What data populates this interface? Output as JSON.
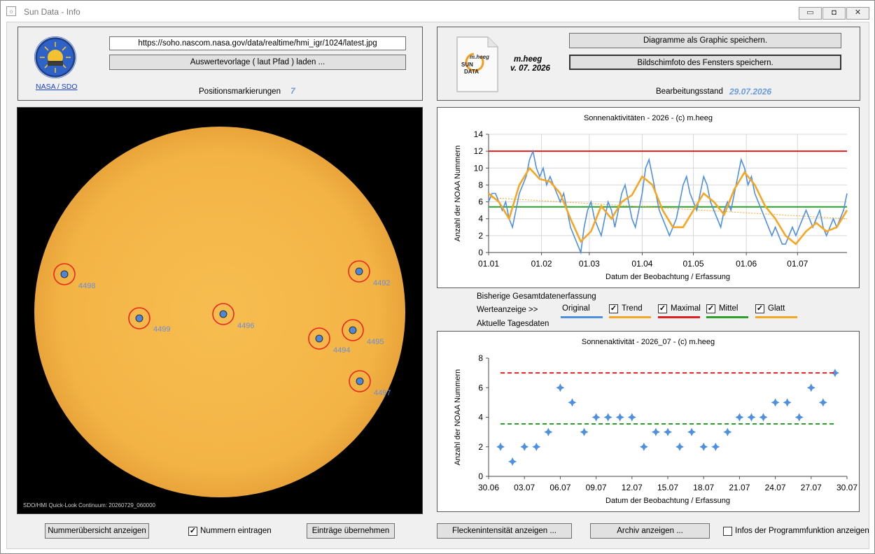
{
  "window": {
    "title": "Sun Data - Info",
    "app_icon": "sun-data-app-icon",
    "controls": {
      "minimize": "▭",
      "maximize": "◘",
      "close": "✕"
    }
  },
  "top_left": {
    "logo_icon": "soho-logo-icon",
    "logo_link": "NASA / SDO",
    "url": "https://soho.nascom.nasa.gov/data/realtime/hmi_igr/1024/latest.jpg",
    "load_button": "Auswertevorlage ( laut Pfad ) laden ...",
    "markers_label": "Positionsmarkierungen",
    "markers_value": "7"
  },
  "top_right": {
    "doc_icon": "sun-data-document-icon",
    "doc_icon_text": {
      "brand": "m.heeg",
      "line1": "SUN",
      "line2": "DATA"
    },
    "author": "m.heeg",
    "version": "v. 07. 2026",
    "save_graphic_button": "Diagramme als Graphic speichern.",
    "save_screenshot_button": "Bildschimfoto des Fensters speichern.",
    "edit_status_label": "Bearbeitungsstand",
    "edit_status_date": "29.07.2026"
  },
  "sun_image": {
    "caption": "SDO/HMI Quick-Look Continuum: 20260729_060000",
    "spots": [
      {
        "label": "4498"
      },
      {
        "label": "4499"
      },
      {
        "label": "4496"
      },
      {
        "label": "4492"
      },
      {
        "label": "4494"
      },
      {
        "label": "4495"
      },
      {
        "label": "4497"
      }
    ],
    "colors": {
      "disk": "#f5b84a",
      "marker_ring": "#e8281e",
      "marker_dot": "#4f86d8",
      "label": "#6b8fd6"
    }
  },
  "legend": {
    "total_label": "Bisherige Gesamtdatenerfassung",
    "values_label": "Werteanzeige   >>",
    "daily_label": "Aktuelle Tagesdaten",
    "items": [
      {
        "label": "Original",
        "color": "#4f8fe0",
        "checked": null
      },
      {
        "label": "Trend",
        "color": "#f5a623",
        "checked": true
      },
      {
        "label": "Maximal",
        "color": "#e02020",
        "checked": true
      },
      {
        "label": "Mittel",
        "color": "#2aa02a",
        "checked": true
      },
      {
        "label": "Glatt",
        "color": "#f5a623",
        "checked": true
      }
    ]
  },
  "chart_data": [
    {
      "type": "line",
      "title": "Sonnenaktivitäten - 2026 - (c) m.heeg",
      "xlabel": "Datum der Beobachtung / Erfassung",
      "ylabel": "Anzahl der NOAA Nummern",
      "ylim": [
        0,
        14
      ],
      "yticks": [
        "0",
        "2",
        "4",
        "6",
        "8",
        "10",
        "12",
        "14"
      ],
      "xticks": [
        "01.01",
        "01.02",
        "01.03",
        "01.04",
        "01.05",
        "01.06",
        "01.07"
      ],
      "grid": true,
      "xlim_days": [
        1,
        211
      ],
      "series": [
        {
          "name": "Original",
          "color": "#4f8fe0",
          "x_day": [
            1,
            3,
            5,
            7,
            9,
            11,
            13,
            15,
            17,
            19,
            21,
            23,
            25,
            27,
            29,
            31,
            33,
            35,
            37,
            39,
            41,
            43,
            45,
            47,
            49,
            51,
            53,
            55,
            57,
            59,
            61,
            63,
            65,
            67,
            69,
            71,
            73,
            75,
            77,
            79,
            81,
            83,
            85,
            87,
            89,
            91,
            93,
            95,
            97,
            99,
            101,
            103,
            105,
            107,
            109,
            111,
            113,
            115,
            117,
            119,
            121,
            123,
            125,
            127,
            129,
            131,
            133,
            135,
            137,
            139,
            141,
            143,
            145,
            147,
            149,
            151,
            153,
            155,
            157,
            159,
            161,
            163,
            165,
            167,
            169,
            171,
            173,
            175,
            177,
            179,
            181,
            183,
            185,
            187,
            189,
            191,
            193,
            195,
            197,
            199,
            201,
            203,
            205,
            207,
            209,
            211
          ],
          "values": [
            6,
            7,
            7,
            6,
            5,
            6,
            4,
            3,
            5,
            7,
            8,
            9,
            11,
            12,
            10,
            9,
            10,
            8,
            9,
            8,
            7,
            6,
            7,
            5,
            3,
            2,
            1,
            0,
            3,
            5,
            6,
            4,
            3,
            2,
            4,
            6,
            5,
            3,
            5,
            7,
            8,
            6,
            4,
            3,
            5,
            7,
            10,
            11,
            9,
            7,
            5,
            4,
            3,
            2,
            3,
            4,
            6,
            8,
            9,
            7,
            6,
            5,
            7,
            9,
            8,
            6,
            5,
            4,
            3,
            5,
            6,
            5,
            7,
            9,
            11,
            10,
            8,
            9,
            7,
            6,
            5,
            4,
            3,
            2,
            3,
            2,
            1,
            1,
            2,
            3,
            2,
            3,
            4,
            5,
            4,
            3,
            4,
            5,
            3,
            2,
            3,
            4,
            3,
            4,
            5,
            7
          ]
        },
        {
          "name": "Glatt",
          "color": "#f5a623",
          "x_day": [
            1,
            7,
            13,
            19,
            25,
            31,
            37,
            43,
            49,
            55,
            61,
            67,
            73,
            79,
            85,
            91,
            97,
            103,
            109,
            115,
            121,
            127,
            133,
            139,
            145,
            151,
            157,
            163,
            169,
            175,
            181,
            187,
            193,
            199,
            205,
            211
          ],
          "values": [
            7,
            6,
            4,
            8,
            10,
            8.7,
            8.4,
            7,
            4,
            1.3,
            2.5,
            5.5,
            4,
            6,
            6.8,
            9,
            8,
            5,
            3,
            3,
            5,
            7,
            6,
            4.5,
            7.5,
            9.5,
            8,
            5.5,
            4,
            2,
            1,
            2.5,
            3.5,
            2.5,
            3,
            5
          ]
        },
        {
          "name": "Trend",
          "color": "#f5a623",
          "x_day": [
            1,
            211
          ],
          "values": [
            6.5,
            4.0
          ]
        },
        {
          "name": "Maximal",
          "color": "#e02020",
          "x_day": [
            1,
            211
          ],
          "values": [
            12,
            12
          ]
        },
        {
          "name": "Mittel",
          "color": "#2aa02a",
          "x_day": [
            1,
            211
          ],
          "values": [
            5.4,
            5.4
          ]
        }
      ]
    },
    {
      "type": "scatter",
      "title": "Sonnenaktivität - 2026_07 - (c) m.heeg",
      "xlabel": "Datum der Beobachtung / Erfassung",
      "ylabel": "Anzahl der NOAA Nummern",
      "ylim": [
        0,
        8
      ],
      "yticks": [
        "0",
        "2",
        "4",
        "6",
        "8"
      ],
      "xticks": [
        "30.06",
        "03.07",
        "06.07",
        "09.07",
        "12.07",
        "15.07",
        "18.07",
        "21.07",
        "24.07",
        "27.07",
        "30.07"
      ],
      "grid": false,
      "xlim_days": [
        0,
        30
      ],
      "series": [
        {
          "name": "Original",
          "color": "#4f8fe0",
          "x": [
            1,
            2,
            3,
            4,
            5,
            6,
            7,
            8,
            9,
            10,
            11,
            12,
            13,
            14,
            15,
            16,
            17,
            18,
            19,
            20,
            21,
            22,
            23,
            24,
            25,
            26,
            27,
            28,
            29
          ],
          "values": [
            2,
            1,
            2,
            2,
            3,
            6,
            5,
            3,
            4,
            4,
            4,
            4,
            2,
            3,
            3,
            2,
            3,
            2,
            2,
            3,
            4,
            4,
            4,
            5,
            5,
            4,
            6,
            5,
            7
          ]
        },
        {
          "name": "Maximal",
          "color": "#e02020",
          "x": [
            1,
            29
          ],
          "values": [
            7,
            7
          ]
        },
        {
          "name": "Mittel",
          "color": "#2aa02a",
          "x": [
            1,
            29
          ],
          "values": [
            3.55,
            3.55
          ]
        }
      ]
    }
  ],
  "bottom_left": {
    "overview_button": "Nummerübersicht anzeigen",
    "enter_numbers_label": "Nummern eintragen",
    "enter_numbers_checked": true,
    "apply_button": "Einträge übernehmen"
  },
  "bottom_right": {
    "intensity_button": "Fleckenintensität anzeigen ...",
    "archive_button": "Archiv anzeigen ...",
    "info_label": "Infos der Programmfunktion anzeigen",
    "info_checked": false
  }
}
